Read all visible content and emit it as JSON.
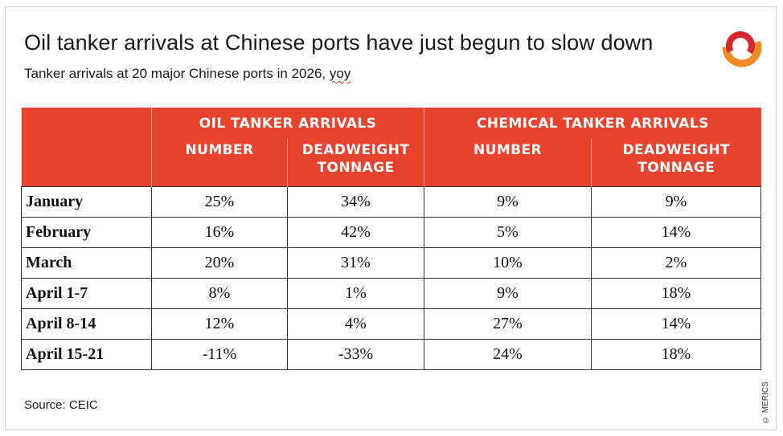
{
  "title": "Oil tanker arrivals at Chinese ports have just begun to slow down",
  "subtitle_main": "Tanker arrivals at 20 major Chinese ports in 2026, ",
  "subtitle_unit": "yoy",
  "source": "Source: CEIC",
  "copyright": "© MERICS",
  "brand_colors": {
    "header_red": "#e8432f",
    "logo_red": "#d9262e",
    "logo_orange": "#f08a24"
  },
  "chart_data": {
    "type": "table",
    "group_headers": [
      "OIL TANKER ARRIVALS",
      "CHEMICAL TANKER ARRIVALS"
    ],
    "sub_headers": [
      [
        "NUMBER"
      ],
      [
        "DEADWEIGHT",
        "TONNAGE"
      ],
      [
        "NUMBER"
      ],
      [
        "DEADWEIGHT",
        "TONNAGE"
      ]
    ],
    "rows": [
      {
        "label": "January",
        "values": [
          "25%",
          "34%",
          "9%",
          "9%"
        ]
      },
      {
        "label": "February",
        "values": [
          "16%",
          "42%",
          "5%",
          "14%"
        ]
      },
      {
        "label": "March",
        "values": [
          "20%",
          "31%",
          "10%",
          "2%"
        ]
      },
      {
        "label": "April 1-7",
        "values": [
          "8%",
          "1%",
          "9%",
          "18%"
        ]
      },
      {
        "label": "April 8-14",
        "values": [
          "12%",
          "4%",
          "27%",
          "14%"
        ]
      },
      {
        "label": "April 15-21",
        "values": [
          "-11%",
          "-33%",
          "24%",
          "18%"
        ]
      }
    ]
  }
}
